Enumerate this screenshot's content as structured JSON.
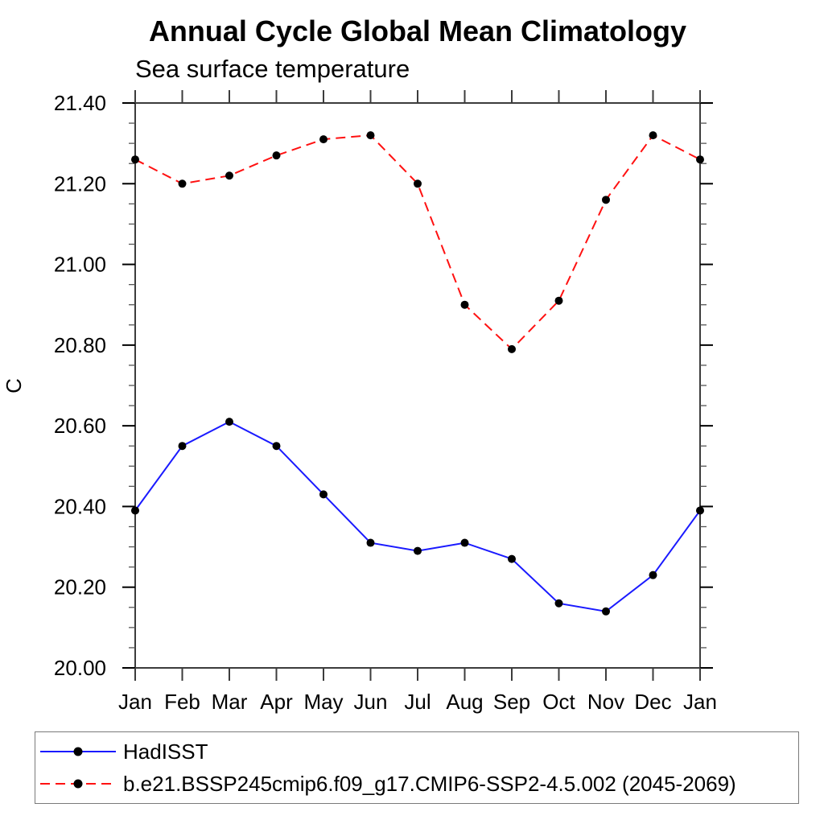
{
  "chart_data": {
    "type": "line",
    "title": "Annual Cycle Global Mean Climatology",
    "subtitle": "Sea surface temperature",
    "ylabel": "C",
    "xlabel": "",
    "categories": [
      "Jan",
      "Feb",
      "Mar",
      "Apr",
      "May",
      "Jun",
      "Jul",
      "Aug",
      "Sep",
      "Oct",
      "Nov",
      "Dec",
      "Jan"
    ],
    "series": [
      {
        "name": "HadISST",
        "color": "#1a1aff",
        "line_style": "solid",
        "marker": "filled-circle",
        "marker_color": "#000000",
        "values": [
          20.39,
          20.55,
          20.61,
          20.55,
          20.43,
          20.31,
          20.29,
          20.31,
          20.27,
          20.16,
          20.14,
          20.23,
          20.39
        ]
      },
      {
        "name": "b.e21.BSSP245cmip6.f09_g17.CMIP6-SSP2-4.5.002 (2045-2069)",
        "color": "#ff1111",
        "line_style": "dashed",
        "marker": "filled-circle",
        "marker_color": "#000000",
        "values": [
          21.26,
          21.2,
          21.22,
          21.27,
          21.31,
          21.32,
          21.2,
          20.9,
          20.79,
          20.91,
          21.16,
          21.32,
          21.26
        ]
      }
    ],
    "ylim": [
      20.0,
      21.4
    ],
    "y_major_tick_step": 0.2,
    "y_minor_tick_step": 0.05,
    "y_tick_labels": [
      "20.00",
      "20.20",
      "20.40",
      "20.60",
      "20.80",
      "21.00",
      "21.20",
      "21.40"
    ],
    "grid": false,
    "legend_position": "bottom-left"
  }
}
